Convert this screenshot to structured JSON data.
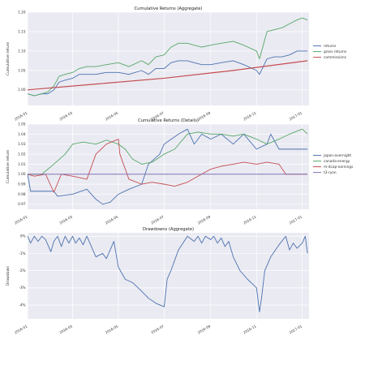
{
  "chart_data": [
    {
      "type": "line",
      "title": "Cumulative Returns (Aggregate)",
      "ylabel": "Cumulative return",
      "xlim": [
        "2016-01-01",
        "2017-01-10"
      ],
      "ylim": [
        0.96,
        1.2
      ],
      "yticks": [
        1.0,
        1.05,
        1.1,
        1.15,
        1.2
      ],
      "ytick_labels": [
        "1.00",
        "1.05",
        "1.10",
        "1.15",
        "1.20"
      ],
      "xticks": [
        "2016-01-01",
        "2016-03-01",
        "2016-05-01",
        "2016-07-01",
        "2016-09-01",
        "2016-11-01",
        "2017-01-01"
      ],
      "xtick_labels": [
        "2016-01",
        "2016-03",
        "2016-05",
        "2016-07",
        "2016-09",
        "2016-11",
        "2017-01"
      ],
      "legend_position": "right",
      "grid": true,
      "series": [
        {
          "name": "returns",
          "color": "#4c72b0",
          "x": [
            "2016-01-01",
            "2016-01-10",
            "2016-01-20",
            "2016-01-28",
            "2016-02-05",
            "2016-02-12",
            "2016-02-20",
            "2016-03-01",
            "2016-03-10",
            "2016-03-20",
            "2016-04-01",
            "2016-04-15",
            "2016-05-01",
            "2016-05-15",
            "2016-06-01",
            "2016-06-10",
            "2016-06-20",
            "2016-07-01",
            "2016-07-10",
            "2016-07-20",
            "2016-08-01",
            "2016-08-10",
            "2016-08-20",
            "2016-09-01",
            "2016-09-15",
            "2016-10-01",
            "2016-10-15",
            "2016-11-01",
            "2016-11-05",
            "2016-11-15",
            "2016-11-25",
            "2016-12-05",
            "2016-12-15",
            "2016-12-25",
            "2017-01-01",
            "2017-01-08"
          ],
          "y": [
            0.99,
            0.985,
            0.99,
            0.99,
            1.0,
            1.02,
            1.025,
            1.03,
            1.04,
            1.04,
            1.04,
            1.045,
            1.045,
            1.04,
            1.05,
            1.04,
            1.055,
            1.055,
            1.07,
            1.075,
            1.075,
            1.07,
            1.065,
            1.065,
            1.07,
            1.075,
            1.065,
            1.05,
            1.04,
            1.08,
            1.085,
            1.085,
            1.09,
            1.1,
            1.1,
            1.1
          ]
        },
        {
          "name": "gross returns",
          "color": "#55a868",
          "x": [
            "2016-01-01",
            "2016-01-10",
            "2016-01-20",
            "2016-01-28",
            "2016-02-05",
            "2016-02-12",
            "2016-02-20",
            "2016-03-01",
            "2016-03-10",
            "2016-03-20",
            "2016-04-01",
            "2016-04-15",
            "2016-05-01",
            "2016-05-15",
            "2016-06-01",
            "2016-06-10",
            "2016-06-20",
            "2016-07-01",
            "2016-07-10",
            "2016-07-20",
            "2016-08-01",
            "2016-08-10",
            "2016-08-20",
            "2016-09-01",
            "2016-09-15",
            "2016-10-01",
            "2016-10-15",
            "2016-11-01",
            "2016-11-05",
            "2016-11-15",
            "2016-11-25",
            "2016-12-05",
            "2016-12-15",
            "2016-12-25",
            "2017-01-01",
            "2017-01-08"
          ],
          "y": [
            0.99,
            0.985,
            0.99,
            0.995,
            1.01,
            1.035,
            1.04,
            1.045,
            1.055,
            1.06,
            1.06,
            1.065,
            1.07,
            1.06,
            1.075,
            1.065,
            1.085,
            1.09,
            1.11,
            1.12,
            1.12,
            1.115,
            1.11,
            1.115,
            1.12,
            1.125,
            1.115,
            1.1,
            1.08,
            1.15,
            1.155,
            1.16,
            1.17,
            1.18,
            1.185,
            1.18
          ]
        },
        {
          "name": "commissions",
          "color": "#c44e52",
          "x": [
            "2016-01-01",
            "2016-04-01",
            "2016-07-01",
            "2016-10-01",
            "2017-01-08"
          ],
          "y": [
            1.0,
            1.015,
            1.03,
            1.05,
            1.075
          ]
        }
      ]
    },
    {
      "type": "line",
      "title": "Cumulative Returns (Details)",
      "ylabel": "Cumulative return",
      "xlim": [
        "2016-01-01",
        "2017-01-10"
      ],
      "ylim": [
        0.965,
        1.05
      ],
      "yticks": [
        0.97,
        0.98,
        0.99,
        1.0,
        1.01,
        1.02,
        1.03,
        1.04,
        1.05
      ],
      "ytick_labels": [
        "0.97",
        "0.98",
        "0.99",
        "1.00",
        "1.01",
        "1.02",
        "1.03",
        "1.04",
        "1.05"
      ],
      "xticks": [
        "2016-01-01",
        "2016-03-01",
        "2016-05-01",
        "2016-07-01",
        "2016-09-01",
        "2016-11-01",
        "2017-01-01"
      ],
      "xtick_labels": [
        "2016-01",
        "2016-03",
        "2016-05",
        "2016-07",
        "2016-09",
        "2016-11",
        "2017-01"
      ],
      "legend_position": "right",
      "grid": true,
      "series": [
        {
          "name": "japan-overnight",
          "color": "#4c72b0",
          "x": [
            "2016-01-01",
            "2016-01-05",
            "2016-02-05",
            "2016-02-10",
            "2016-03-01",
            "2016-03-20",
            "2016-04-01",
            "2016-04-10",
            "2016-04-20",
            "2016-05-01",
            "2016-05-15",
            "2016-06-01",
            "2016-06-10",
            "2016-06-25",
            "2016-07-01",
            "2016-07-20",
            "2016-08-01",
            "2016-08-10",
            "2016-08-20",
            "2016-09-01",
            "2016-09-15",
            "2016-10-01",
            "2016-10-15",
            "2016-11-01",
            "2016-11-15",
            "2016-11-20",
            "2016-12-01",
            "2017-01-08"
          ],
          "y": [
            1.0,
            0.983,
            0.983,
            0.978,
            0.98,
            0.985,
            0.975,
            0.97,
            0.972,
            0.98,
            0.985,
            0.99,
            1.01,
            1.02,
            1.03,
            1.04,
            1.045,
            1.03,
            1.04,
            1.035,
            1.04,
            1.03,
            1.04,
            1.025,
            1.03,
            1.04,
            1.025,
            1.025
          ]
        },
        {
          "name": "canada-energy",
          "color": "#55a868",
          "x": [
            "2016-01-01",
            "2016-01-20",
            "2016-02-05",
            "2016-02-20",
            "2016-03-01",
            "2016-03-15",
            "2016-04-01",
            "2016-04-15",
            "2016-05-01",
            "2016-05-10",
            "2016-05-20",
            "2016-06-01",
            "2016-06-15",
            "2016-07-01",
            "2016-07-15",
            "2016-08-01",
            "2016-08-15",
            "2016-09-01",
            "2016-09-15",
            "2016-10-01",
            "2016-10-15",
            "2016-11-01",
            "2016-11-15",
            "2016-12-01",
            "2016-12-15",
            "2017-01-01",
            "2017-01-08"
          ],
          "y": [
            1.0,
            1.0,
            1.01,
            1.02,
            1.03,
            1.032,
            1.03,
            1.034,
            1.03,
            1.025,
            1.015,
            1.01,
            1.012,
            1.02,
            1.025,
            1.04,
            1.042,
            1.04,
            1.04,
            1.038,
            1.04,
            1.035,
            1.03,
            1.035,
            1.04,
            1.045,
            1.04
          ]
        },
        {
          "name": "m-dcap-earnings",
          "color": "#c44e52",
          "x": [
            "2016-01-01",
            "2016-01-10",
            "2016-01-25",
            "2016-02-05",
            "2016-02-15",
            "2016-03-01",
            "2016-03-20",
            "2016-04-01",
            "2016-04-15",
            "2016-05-01",
            "2016-05-03",
            "2016-05-15",
            "2016-06-01",
            "2016-06-15",
            "2016-07-01",
            "2016-07-15",
            "2016-08-01",
            "2016-08-15",
            "2016-09-01",
            "2016-09-15",
            "2016-10-01",
            "2016-10-15",
            "2016-11-01",
            "2016-11-15",
            "2016-12-01",
            "2016-12-10",
            "2017-01-08"
          ],
          "y": [
            1.0,
            0.998,
            1.0,
            0.982,
            1.0,
            0.998,
            0.995,
            1.02,
            1.03,
            1.035,
            1.02,
            0.995,
            0.99,
            0.992,
            0.99,
            0.988,
            0.992,
            0.998,
            1.005,
            1.008,
            1.01,
            1.012,
            1.01,
            1.012,
            1.01,
            1.0,
            1.0
          ]
        },
        {
          "name": "t3-ryon",
          "color": "#8172b3",
          "x": [
            "2016-01-01",
            "2017-01-08"
          ],
          "y": [
            1.0,
            1.0
          ]
        }
      ]
    },
    {
      "type": "line",
      "title": "Drawdowns (Aggregate)",
      "ylabel": "Drawdown",
      "xlim": [
        "2016-01-01",
        "2017-01-10"
      ],
      "ylim": [
        -0.048,
        0.002
      ],
      "yticks": [
        0.0,
        -0.01,
        -0.02,
        -0.03,
        -0.04
      ],
      "ytick_labels": [
        "0%",
        "-1%",
        "-2%",
        "-3%",
        "-4%"
      ],
      "xticks": [
        "2016-01-01",
        "2016-03-01",
        "2016-05-01",
        "2016-07-01",
        "2016-09-01",
        "2016-11-01",
        "2017-01-01"
      ],
      "xtick_labels": [
        "2016-01",
        "2016-03",
        "2016-05",
        "2016-07",
        "2016-09",
        "2016-11",
        "2017-01"
      ],
      "grid": true,
      "series": [
        {
          "name": "",
          "color": "#4c72b0",
          "x": [
            "2016-01-01",
            "2016-01-05",
            "2016-01-10",
            "2016-01-15",
            "2016-01-20",
            "2016-01-25",
            "2016-02-01",
            "2016-02-05",
            "2016-02-10",
            "2016-02-15",
            "2016-02-20",
            "2016-02-25",
            "2016-03-01",
            "2016-03-05",
            "2016-03-10",
            "2016-03-15",
            "2016-03-20",
            "2016-03-25",
            "2016-04-01",
            "2016-04-10",
            "2016-04-15",
            "2016-04-20",
            "2016-04-25",
            "2016-05-01",
            "2016-05-10",
            "2016-05-20",
            "2016-06-01",
            "2016-06-10",
            "2016-06-20",
            "2016-07-01",
            "2016-07-05",
            "2016-07-10",
            "2016-07-20",
            "2016-08-01",
            "2016-08-10",
            "2016-08-15",
            "2016-08-20",
            "2016-08-25",
            "2016-09-01",
            "2016-09-05",
            "2016-09-10",
            "2016-09-15",
            "2016-09-20",
            "2016-09-25",
            "2016-10-01",
            "2016-10-10",
            "2016-10-20",
            "2016-11-01",
            "2016-11-05",
            "2016-11-08",
            "2016-11-12",
            "2016-11-20",
            "2016-12-01",
            "2016-12-10",
            "2016-12-15",
            "2016-12-20",
            "2016-12-25",
            "2017-01-01",
            "2017-01-05",
            "2017-01-08"
          ],
          "y": [
            0.0,
            -0.004,
            0.0,
            -0.003,
            0.0,
            -0.002,
            -0.009,
            -0.003,
            0.0,
            -0.006,
            0.0,
            -0.004,
            0.0,
            -0.004,
            -0.001,
            -0.005,
            0.0,
            -0.005,
            -0.012,
            -0.01,
            -0.013,
            -0.008,
            -0.003,
            -0.018,
            -0.025,
            -0.027,
            -0.032,
            -0.036,
            -0.039,
            -0.041,
            -0.025,
            -0.02,
            -0.008,
            0.0,
            -0.003,
            0.0,
            -0.004,
            0.0,
            -0.002,
            0.0,
            -0.004,
            -0.001,
            -0.006,
            -0.003,
            -0.012,
            -0.02,
            -0.025,
            -0.03,
            -0.044,
            -0.035,
            -0.02,
            -0.012,
            -0.005,
            0.0,
            -0.008,
            -0.004,
            -0.007,
            -0.004,
            0.0,
            -0.01
          ]
        }
      ]
    }
  ]
}
